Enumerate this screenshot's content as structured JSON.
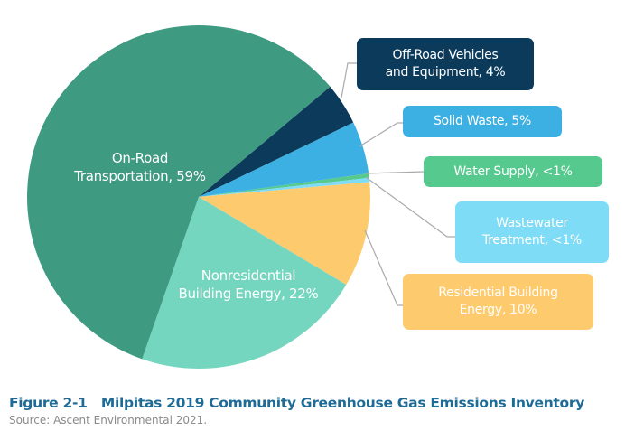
{
  "chart_data": {
    "type": "pie",
    "title": "Figure 2-1   Milpitas 2019 Community Greenhouse Gas Emissions Inventory",
    "source": "Source: Ascent Environmental 2021.",
    "slices": [
      {
        "label": "Off-Road Vehicles and Equipment, 4%",
        "value": 4,
        "color": "#0b3a5a"
      },
      {
        "label": "Solid Waste, 5%",
        "value": 5,
        "color": "#3db0e3"
      },
      {
        "label": "Water Supply, <1%",
        "value": 0.4,
        "color": "#55c98e"
      },
      {
        "label": "Wastewater Treatment, <1%",
        "value": 0.4,
        "color": "#7fdcf7"
      },
      {
        "label": "Residential Building Energy, 10%",
        "value": 10,
        "color": "#fdcb6e"
      },
      {
        "label": "Nonresidential Building Energy, 22%",
        "value": 22,
        "color": "#74d6bf"
      },
      {
        "label": "On-Road Transportation, 59%",
        "value": 59,
        "color": "#3f9a82"
      }
    ],
    "labels": {
      "off_road": [
        "Off-Road Vehicles",
        "and Equipment, 4%"
      ],
      "solid_waste": [
        "Solid Waste, 5%"
      ],
      "water_supply": [
        "Water Supply, <1%"
      ],
      "wastewater": [
        "Wastewater",
        "Treatment, <1%"
      ],
      "residential": [
        "Residential Building",
        "Energy, 10%"
      ],
      "nonresidential": [
        "Nonresidential",
        "Building Energy, 22%"
      ],
      "on_road": [
        "On-Road",
        "Transportation, 59%"
      ]
    }
  }
}
